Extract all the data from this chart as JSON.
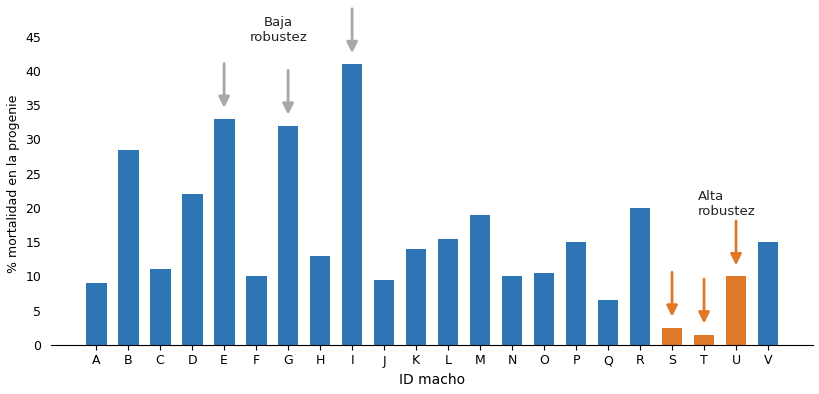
{
  "categories": [
    "A",
    "B",
    "C",
    "D",
    "E",
    "F",
    "G",
    "H",
    "I",
    "J",
    "K",
    "L",
    "M",
    "N",
    "O",
    "P",
    "Q",
    "R",
    "S",
    "T",
    "U",
    "V"
  ],
  "values": [
    9,
    28.5,
    11,
    22,
    33,
    10,
    32,
    13,
    41,
    9.5,
    14,
    15.5,
    19,
    10,
    10.5,
    15,
    6.5,
    20,
    2.5,
    1.5,
    10,
    15
  ],
  "bar_color_blue": "#2e75b6",
  "bar_color_orange": "#e07828",
  "ylim": [
    0,
    47
  ],
  "yticks": [
    0,
    5,
    10,
    15,
    20,
    25,
    30,
    35,
    40,
    45
  ],
  "xlabel": "ID macho",
  "ylabel": "% mortalidad en la progenie",
  "arrow_gray_bars": [
    "E",
    "G",
    "I"
  ],
  "arrow_orange_bars": [
    "S",
    "T",
    "U"
  ],
  "orange_bar_indices": [
    "S",
    "T",
    "U"
  ],
  "gray_arrow_color": "#a8a8a8",
  "orange_arrow_color": "#e07828",
  "label_baja": "Baja\nrobustez",
  "label_alta": "Alta\nrobustez",
  "background_color": "#ffffff"
}
